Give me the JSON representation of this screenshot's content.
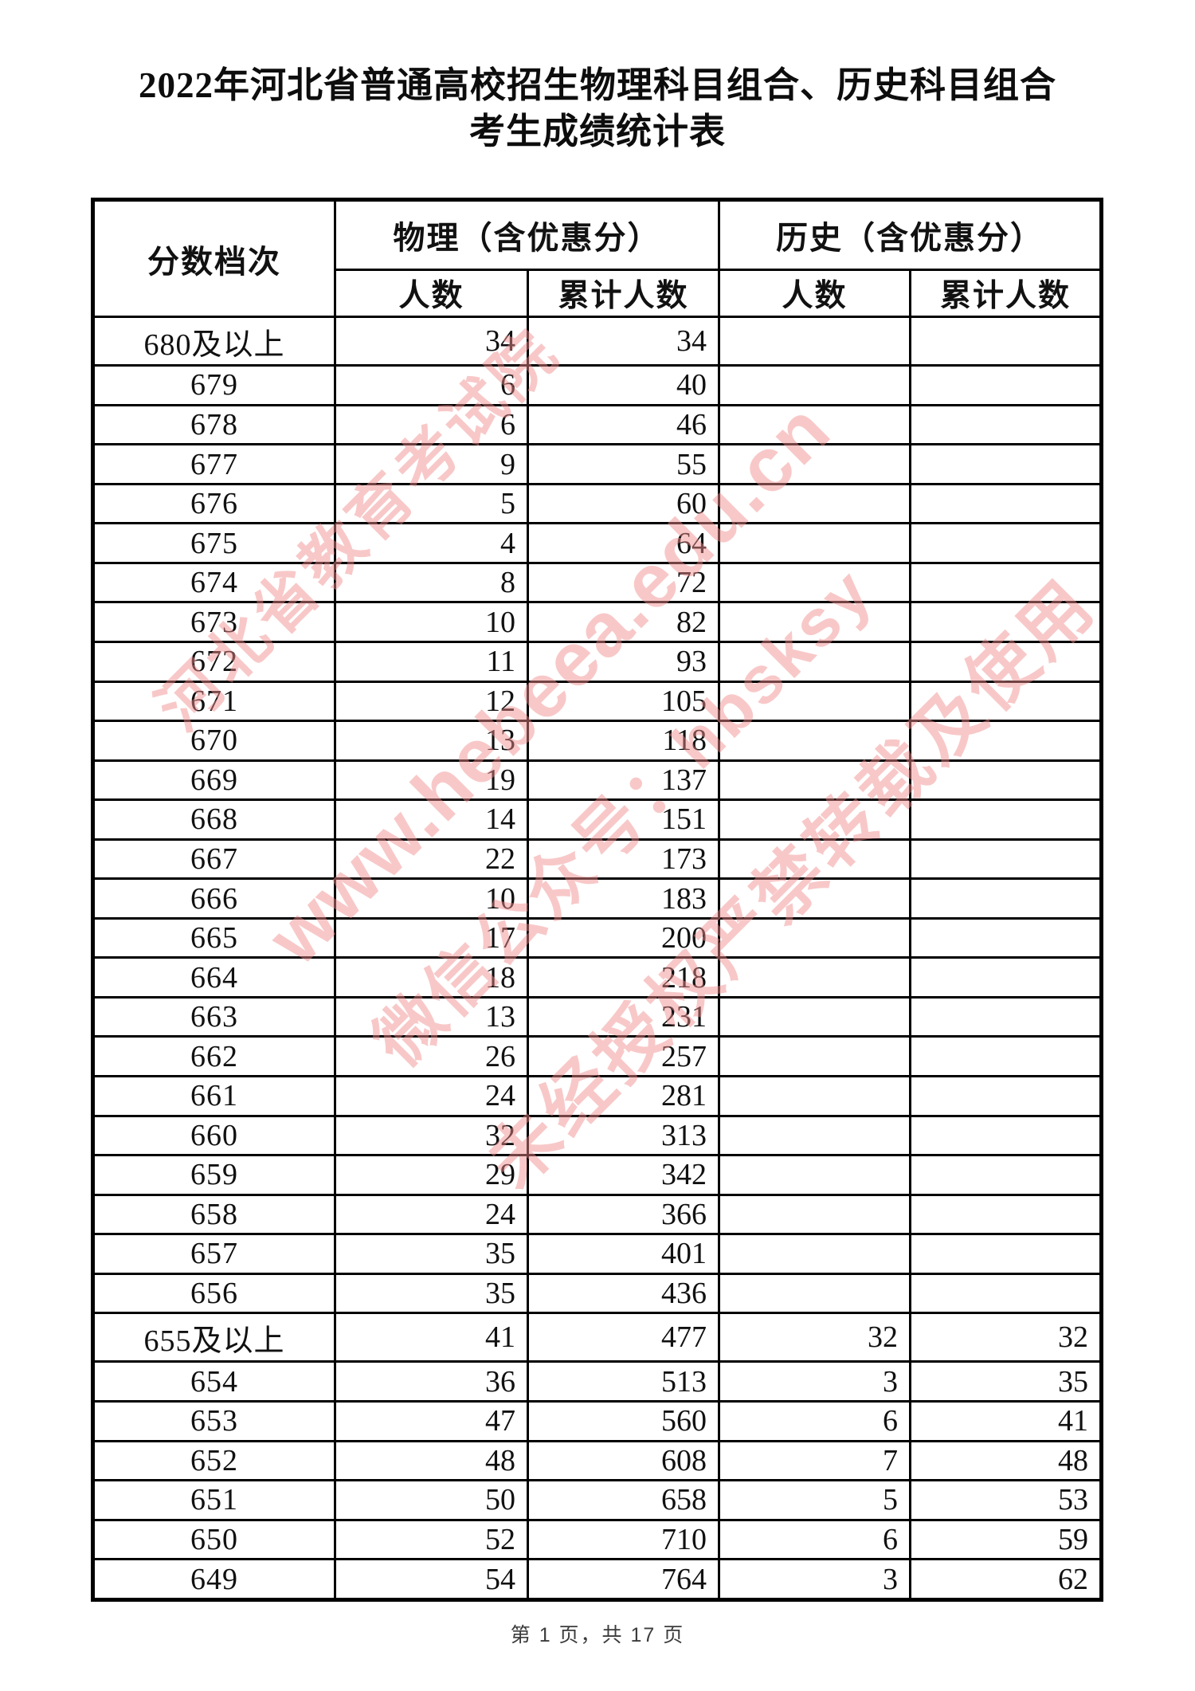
{
  "page": {
    "title_line1": "2022年河北省普通高校招生物理科目组合、历史科目组合",
    "title_line2": "考生成绩统计表",
    "footer": "第 1 页，共 17 页"
  },
  "watermark": {
    "color": "#f08c8c",
    "lines": [
      "河北省教育考试院",
      "www.hebeea.edu.cn",
      "微信公众号：hbsksy",
      "未经授权严禁转载及使用"
    ]
  },
  "table": {
    "headers": {
      "score_level": "分数档次",
      "physics_group": "物理（含优惠分）",
      "history_group": "历史（含优惠分）",
      "count": "人数",
      "cumulative": "累计人数"
    },
    "rows": [
      [
        "680及以上",
        "34",
        "34",
        "",
        ""
      ],
      [
        "679",
        "6",
        "40",
        "",
        ""
      ],
      [
        "678",
        "6",
        "46",
        "",
        ""
      ],
      [
        "677",
        "9",
        "55",
        "",
        ""
      ],
      [
        "676",
        "5",
        "60",
        "",
        ""
      ],
      [
        "675",
        "4",
        "64",
        "",
        ""
      ],
      [
        "674",
        "8",
        "72",
        "",
        ""
      ],
      [
        "673",
        "10",
        "82",
        "",
        ""
      ],
      [
        "672",
        "11",
        "93",
        "",
        ""
      ],
      [
        "671",
        "12",
        "105",
        "",
        ""
      ],
      [
        "670",
        "13",
        "118",
        "",
        ""
      ],
      [
        "669",
        "19",
        "137",
        "",
        ""
      ],
      [
        "668",
        "14",
        "151",
        "",
        ""
      ],
      [
        "667",
        "22",
        "173",
        "",
        ""
      ],
      [
        "666",
        "10",
        "183",
        "",
        ""
      ],
      [
        "665",
        "17",
        "200",
        "",
        ""
      ],
      [
        "664",
        "18",
        "218",
        "",
        ""
      ],
      [
        "663",
        "13",
        "231",
        "",
        ""
      ],
      [
        "662",
        "26",
        "257",
        "",
        ""
      ],
      [
        "661",
        "24",
        "281",
        "",
        ""
      ],
      [
        "660",
        "32",
        "313",
        "",
        ""
      ],
      [
        "659",
        "29",
        "342",
        "",
        ""
      ],
      [
        "658",
        "24",
        "366",
        "",
        ""
      ],
      [
        "657",
        "35",
        "401",
        "",
        ""
      ],
      [
        "656",
        "35",
        "436",
        "",
        ""
      ],
      [
        "655及以上",
        "41",
        "477",
        "32",
        "32"
      ],
      [
        "654",
        "36",
        "513",
        "3",
        "35"
      ],
      [
        "653",
        "47",
        "560",
        "6",
        "41"
      ],
      [
        "652",
        "48",
        "608",
        "7",
        "48"
      ],
      [
        "651",
        "50",
        "658",
        "5",
        "53"
      ],
      [
        "650",
        "52",
        "710",
        "6",
        "59"
      ],
      [
        "649",
        "54",
        "764",
        "3",
        "62"
      ]
    ]
  },
  "chart_data": {
    "type": "table",
    "title": "2022年河北省普通高校招生物理科目组合、历史科目组合考生成绩统计表",
    "columns": [
      "分数档次",
      "物理人数",
      "物理累计人数",
      "历史人数",
      "历史累计人数"
    ],
    "note": "rows mirrored in table.rows"
  }
}
